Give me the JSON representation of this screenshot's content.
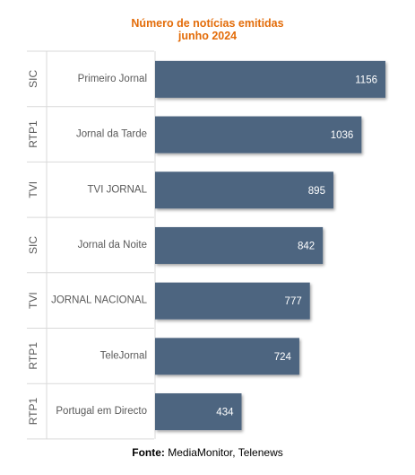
{
  "chart_data": {
    "type": "bar",
    "orientation": "horizontal",
    "title": "Número de notícias emitidas",
    "subtitle": "junho 2024",
    "rows": [
      {
        "channel": "SIC",
        "program": "Primeiro Jornal",
        "value": 1156
      },
      {
        "channel": "RTP1",
        "program": "Jornal da Tarde",
        "value": 1036
      },
      {
        "channel": "TVI",
        "program": "TVI JORNAL",
        "value": 895
      },
      {
        "channel": "SIC",
        "program": "Jornal da Noite",
        "value": 842
      },
      {
        "channel": "TVI",
        "program": "JORNAL NACIONAL",
        "value": 777
      },
      {
        "channel": "RTP1",
        "program": "TeleJornal",
        "value": 724
      },
      {
        "channel": "RTP1",
        "program": "Portugal em Directo",
        "value": 434
      }
    ],
    "xlim": [
      0,
      1156
    ],
    "bar_color": "#4d6580",
    "label_color": "#ffffff",
    "grid": false,
    "legend": "none"
  },
  "source": {
    "label": "Fonte:",
    "text": "MediaMonitor, Telenews"
  }
}
